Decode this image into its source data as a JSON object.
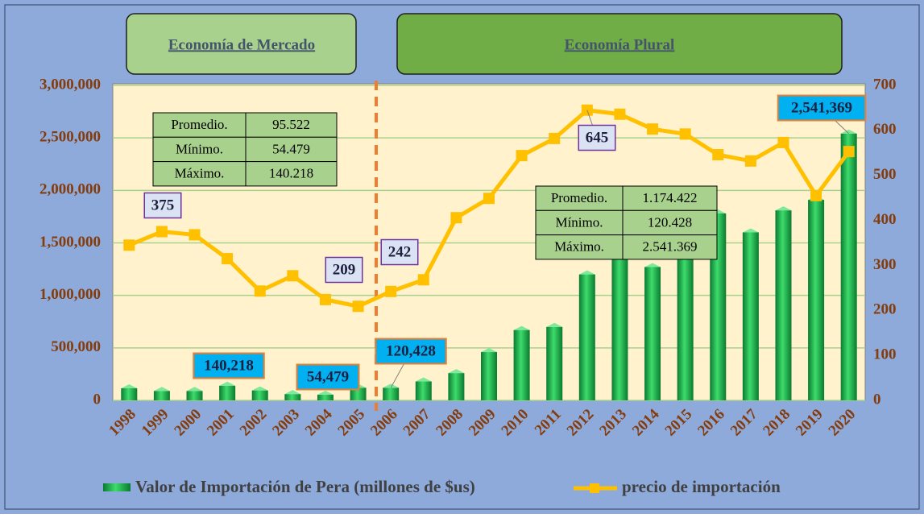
{
  "sections": [
    "Economía de Mercado",
    "Economía Plural"
  ],
  "chart_data": {
    "type": "bar",
    "categories": [
      "1998",
      "1999",
      "2000",
      "2001",
      "2002",
      "2003",
      "2004",
      "2005",
      "2006",
      "2007",
      "2008",
      "2009",
      "2010",
      "2011",
      "2012",
      "2013",
      "2014",
      "2015",
      "2016",
      "2017",
      "2018",
      "2019",
      "2020"
    ],
    "series": [
      {
        "name": "Valor de Importación de Pera (millones de $us)",
        "type": "bar",
        "color": "#00a846",
        "values": [
          115000,
          90000,
          90000,
          140218,
          95000,
          60000,
          54479,
          120000,
          120428,
          180000,
          260000,
          460000,
          670000,
          700000,
          1200000,
          1400000,
          1270000,
          1400000,
          1780000,
          1600000,
          1810000,
          1910000,
          2541369
        ],
        "value_labels": [
          null,
          null,
          null,
          "140,218",
          null,
          null,
          "54,479",
          null,
          "120,428",
          null,
          null,
          null,
          null,
          null,
          null,
          null,
          null,
          null,
          null,
          null,
          null,
          null,
          "2,541,369"
        ]
      },
      {
        "name": "precio de importación",
        "type": "line",
        "axis": "y2",
        "color": "#ffc000",
        "values": [
          345,
          375,
          368,
          315,
          243,
          277,
          224,
          209,
          242,
          268,
          406,
          449,
          544,
          582,
          645,
          636,
          603,
          592,
          546,
          532,
          573,
          455,
          553
        ],
        "value_labels": [
          null,
          "375",
          null,
          null,
          null,
          null,
          null,
          "209",
          "242",
          null,
          null,
          null,
          null,
          null,
          "645",
          null,
          null,
          null,
          null,
          null,
          null,
          null,
          null
        ]
      }
    ],
    "ylim": [
      0,
      3000000
    ],
    "yticks": [
      0,
      {
        "value": 500000,
        "label": "500,000"
      },
      {
        "value": 1000000,
        "label": "1,000,000"
      },
      {
        "value": 1500000,
        "label": "1,500,000"
      },
      {
        "value": 2000000,
        "label": "2,000,000"
      },
      {
        "value": 2500000,
        "label": "2,500,000"
      },
      {
        "value": 3000000,
        "label": "3,000,000"
      }
    ],
    "y2lim": [
      0,
      700
    ],
    "y2ticks": [
      0,
      100,
      200,
      300,
      400,
      500,
      600,
      700
    ],
    "grid": true,
    "stats_tables": [
      {
        "rows": [
          [
            "Promedio.",
            "95.522"
          ],
          [
            "Mínimo.",
            "54.479"
          ],
          [
            "Máximo.",
            "140.218"
          ]
        ]
      },
      {
        "rows": [
          [
            "Promedio.",
            "1.174.422"
          ],
          [
            "Mínimo.",
            "120.428"
          ],
          [
            "Máximo.",
            "2.541.369"
          ]
        ]
      }
    ]
  }
}
